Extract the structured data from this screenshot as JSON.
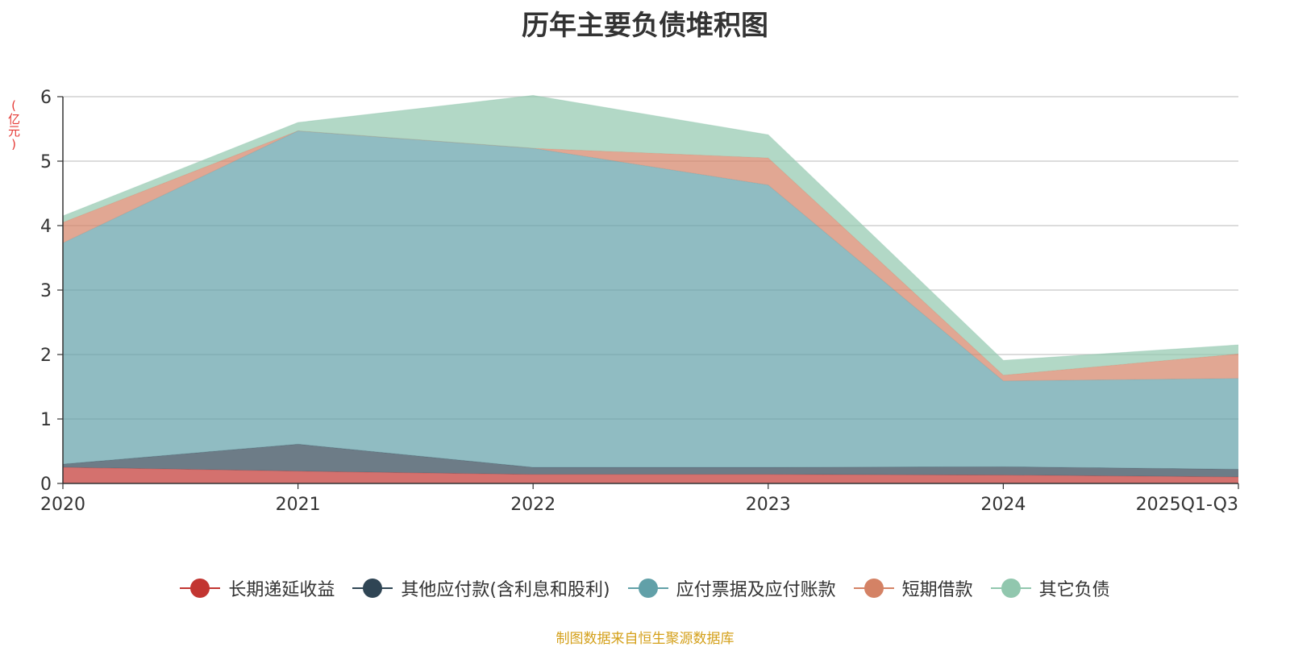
{
  "chart_data": {
    "type": "area",
    "stacked": true,
    "title": "历年主要负债堆积图",
    "unit_label": "(亿元)",
    "categories": [
      "2020",
      "2021",
      "2022",
      "2023",
      "2024",
      "2025Q1-Q3"
    ],
    "ylim": [
      0,
      6
    ],
    "yticks": [
      0,
      1,
      2,
      3,
      4,
      5,
      6
    ],
    "grid": true,
    "legend_position": "bottom",
    "series": [
      {
        "name": "长期递延收益",
        "color": "#c23531",
        "values": [
          0.25,
          0.19,
          0.14,
          0.14,
          0.13,
          0.1
        ]
      },
      {
        "name": "其他应付款(含利息和股利)",
        "color": "#2f4554",
        "values": [
          0.05,
          0.42,
          0.11,
          0.11,
          0.13,
          0.12
        ]
      },
      {
        "name": "应付票据及应付账款",
        "color": "#61a0a8",
        "values": [
          3.43,
          4.86,
          4.95,
          4.38,
          1.33,
          1.41
        ]
      },
      {
        "name": "短期借款",
        "color": "#d48265",
        "values": [
          0.32,
          0.0,
          0.0,
          0.42,
          0.09,
          0.38
        ]
      },
      {
        "name": "其它负债",
        "color": "#91c7ae",
        "values": [
          0.1,
          0.13,
          0.82,
          0.36,
          0.23,
          0.14
        ]
      }
    ]
  },
  "source_note": "制图数据来自恒生聚源数据库"
}
